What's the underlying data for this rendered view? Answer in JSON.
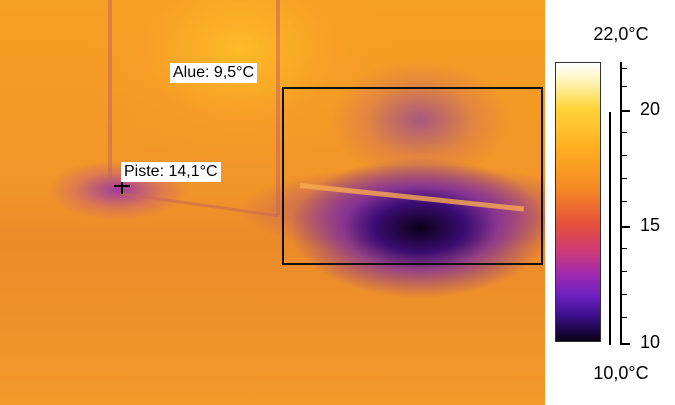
{
  "annotations": {
    "area_label": "Alue: 9,5°C",
    "point_label": "Piste: 14,1°C"
  },
  "scale": {
    "max_label": "22,0°C",
    "min_label": "10,0°C",
    "ticks": [
      "20",
      "15",
      "10"
    ]
  },
  "icons": {
    "spot_cursor": "crosshair-icon"
  },
  "colors": {
    "palette_hot": "#ffffff",
    "palette_warm": "#f58a25",
    "palette_mid": "#a02ab0",
    "palette_cold": "#0a0018"
  }
}
